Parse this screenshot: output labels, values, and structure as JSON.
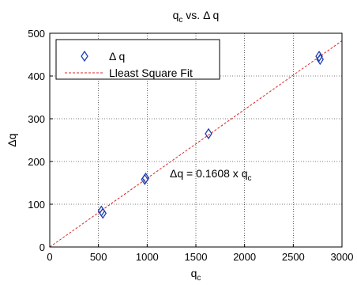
{
  "chart_data": {
    "type": "scatter",
    "title": {
      "main": "q",
      "sub": "c",
      "tail": " vs. Δ q"
    },
    "xlabel": {
      "main": "q",
      "sub": "c"
    },
    "ylabel": "Δq",
    "xlim": [
      0,
      3000
    ],
    "ylim": [
      0,
      500
    ],
    "xticks": [
      0,
      500,
      1000,
      1500,
      2000,
      2500,
      3000
    ],
    "yticks": [
      0,
      100,
      200,
      300,
      400,
      500
    ],
    "grid": true,
    "legend_position": "top-left",
    "colors": {
      "marker": "#1f3fb0",
      "fit": "#d62728"
    },
    "series": [
      {
        "name": "Δ q",
        "points": [
          {
            "x": 530,
            "y": 84
          },
          {
            "x": 545,
            "y": 79
          },
          {
            "x": 975,
            "y": 158
          },
          {
            "x": 985,
            "y": 161
          },
          {
            "x": 1630,
            "y": 265
          },
          {
            "x": 2765,
            "y": 446
          },
          {
            "x": 2775,
            "y": 439
          }
        ]
      },
      {
        "name": "Lleast Square Fit",
        "slope": 0.1608,
        "x_range": [
          0,
          3000
        ]
      }
    ],
    "annotation": {
      "main": "Δq = 0.1608 x q",
      "sub": "c"
    }
  }
}
